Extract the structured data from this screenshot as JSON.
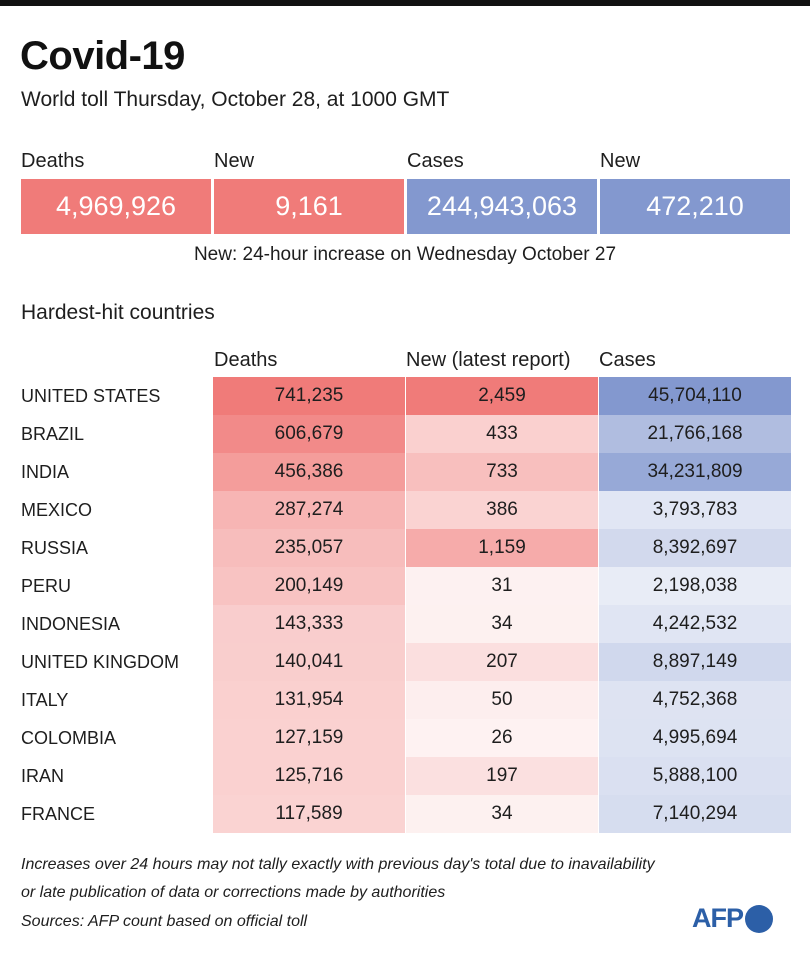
{
  "header": {
    "title": "Covid-19",
    "subtitle": "World toll Thursday, October 28, at 1000 GMT"
  },
  "summary": {
    "labels": [
      "Deaths",
      "New",
      "Cases",
      "New"
    ],
    "values": [
      "4,969,926",
      "9,161",
      "244,943,063",
      "472,210"
    ],
    "note": "New: 24-hour increase on Wednesday October 27"
  },
  "section_title": "Hardest-hit countries",
  "columns": [
    "Deaths",
    "New (latest report)",
    "Cases"
  ],
  "colors": {
    "red": "#f07b79",
    "blue": "#8398cf"
  },
  "chart_data": {
    "type": "table",
    "title": "Hardest-hit countries",
    "columns": [
      "Deaths",
      "New (latest report)",
      "Cases"
    ],
    "rows": [
      {
        "country": "UNITED STATES",
        "deaths": "741,235",
        "new": "2,459",
        "cases": "45,704,110"
      },
      {
        "country": "BRAZIL",
        "deaths": "606,679",
        "new": "433",
        "cases": "21,766,168"
      },
      {
        "country": "INDIA",
        "deaths": "456,386",
        "new": "733",
        "cases": "34,231,809"
      },
      {
        "country": "MEXICO",
        "deaths": "287,274",
        "new": "386",
        "cases": "3,793,783"
      },
      {
        "country": "RUSSIA",
        "deaths": "235,057",
        "new": "1,159",
        "cases": "8,392,697"
      },
      {
        "country": "PERU",
        "deaths": "200,149",
        "new": "31",
        "cases": "2,198,038"
      },
      {
        "country": "INDONESIA",
        "deaths": "143,333",
        "new": "34",
        "cases": "4,242,532"
      },
      {
        "country": "UNITED KINGDOM",
        "deaths": "140,041",
        "new": "207",
        "cases": "8,897,149"
      },
      {
        "country": "ITALY",
        "deaths": "131,954",
        "new": "50",
        "cases": "4,752,368"
      },
      {
        "country": "COLOMBIA",
        "deaths": "127,159",
        "new": "26",
        "cases": "4,995,694"
      },
      {
        "country": "IRAN",
        "deaths": "125,716",
        "new": "197",
        "cases": "5,888,100"
      },
      {
        "country": "FRANCE",
        "deaths": "117,589",
        "new": "34",
        "cases": "7,140,294"
      }
    ]
  },
  "footer": {
    "note_line1": "Increases over 24 hours may not tally exactly with previous day's total due to inavailability",
    "note_line2": "or late publication of data or corrections made by authorities",
    "sources": "Sources: AFP count based on official toll",
    "logo": "AFP"
  }
}
